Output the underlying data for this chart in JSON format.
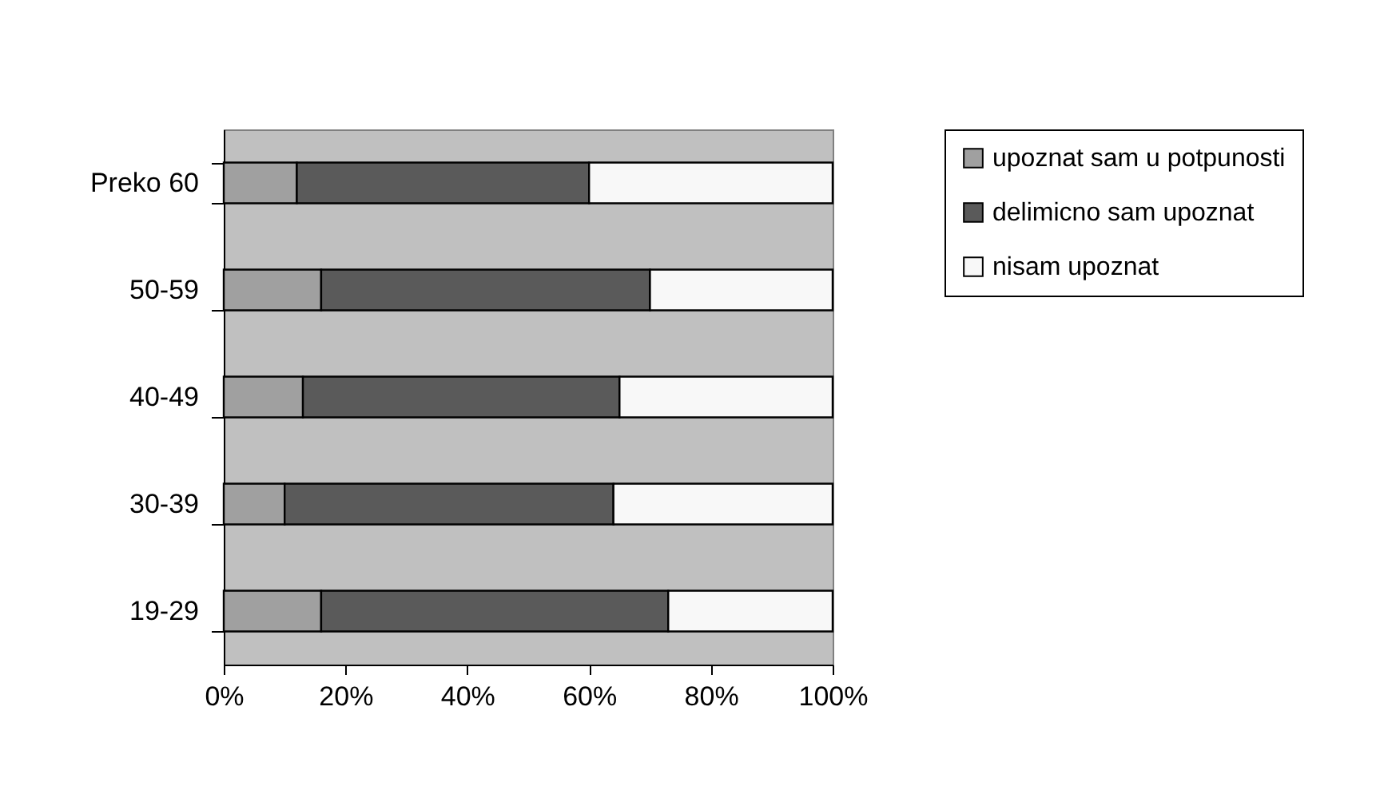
{
  "chart_data": {
    "type": "bar",
    "orientation": "horizontal",
    "stacked": true,
    "categories": [
      "Preko 60",
      "50-59",
      "40-49",
      "30-39",
      "19-29"
    ],
    "series": [
      {
        "name": "upoznat sam u potpunosti",
        "color": "#a0a0a0",
        "values": [
          12,
          16,
          13,
          10,
          16
        ]
      },
      {
        "name": "delimicno sam upoznat",
        "color": "#5a5a5a",
        "values": [
          48,
          54,
          52,
          54,
          57
        ]
      },
      {
        "name": "nisam upoznat",
        "color": "#f8f8f8",
        "values": [
          40,
          30,
          35,
          36,
          27
        ]
      }
    ],
    "xlim": [
      0,
      100
    ],
    "xticks": [
      {
        "value": 0,
        "label": "0%"
      },
      {
        "value": 20,
        "label": "20%"
      },
      {
        "value": 40,
        "label": "40%"
      },
      {
        "value": 60,
        "label": "60%"
      },
      {
        "value": 80,
        "label": "80%"
      },
      {
        "value": 100,
        "label": "100%"
      }
    ],
    "grid": false,
    "legend": "right"
  }
}
